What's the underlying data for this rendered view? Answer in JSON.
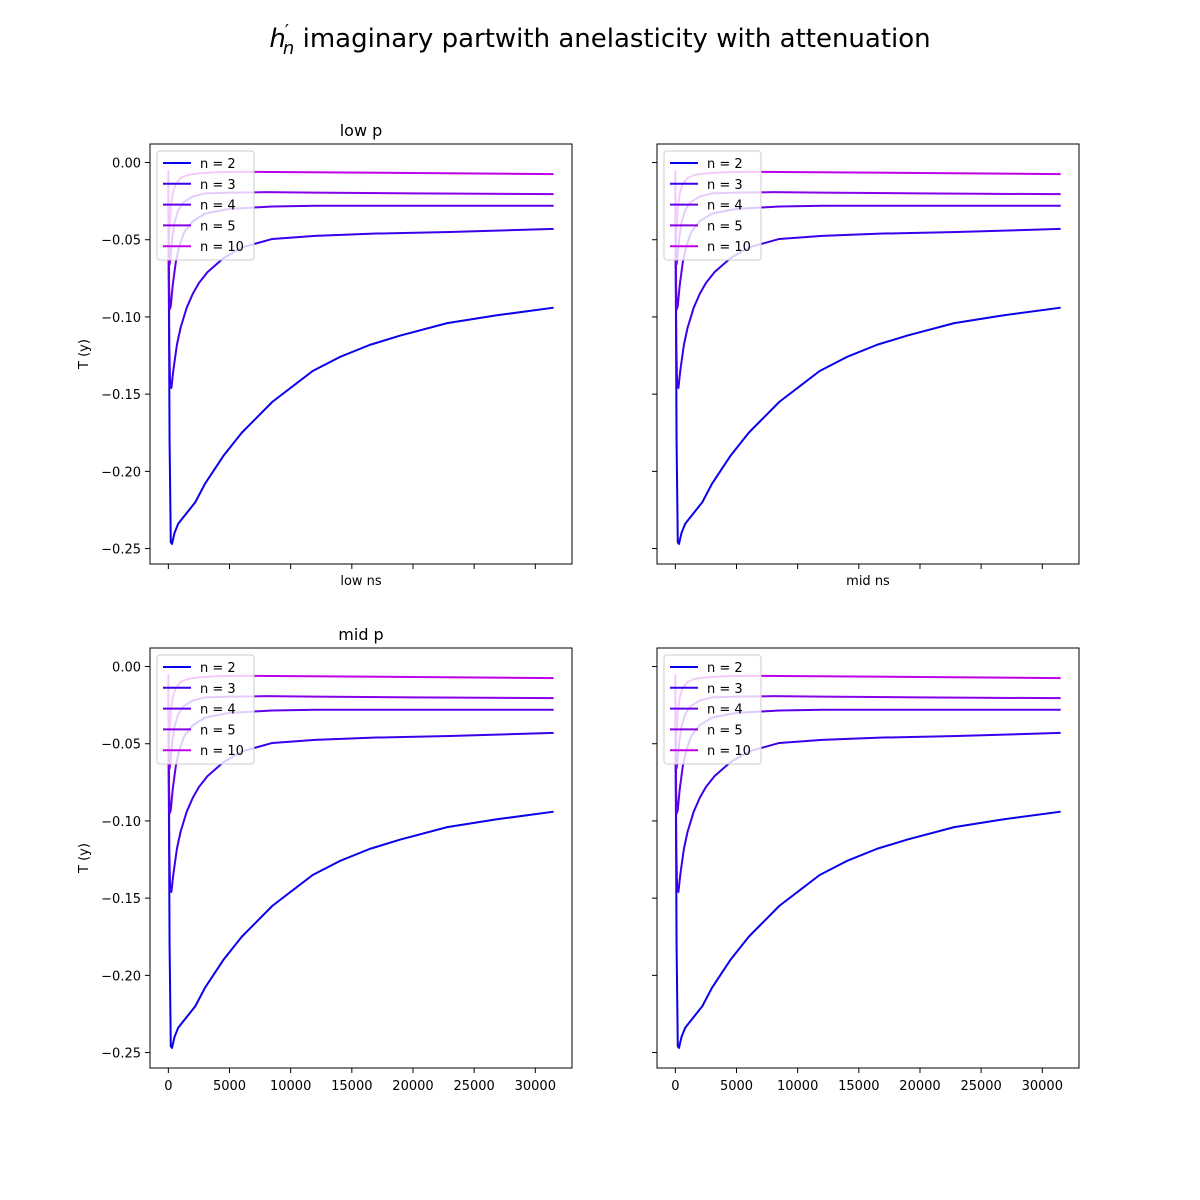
{
  "figure": {
    "title_math_base": "h",
    "title_math_prime": "′",
    "title_math_sub": "n",
    "title_text": " imaginary partwith anelasticity with attenuation"
  },
  "chart_data": [
    {
      "type": "line",
      "title": "low p",
      "xlabel": "low ns",
      "ylabel": "T (y)",
      "xlim": [
        -1500,
        33000
      ],
      "ylim": [
        -0.26,
        0.012
      ],
      "xticks": [
        0,
        5000,
        10000,
        15000,
        20000,
        25000,
        30000
      ],
      "xtick_labels_visible": false,
      "yticks": [
        0.0,
        -0.05,
        -0.1,
        -0.15,
        -0.2,
        -0.25
      ],
      "ytick_labels": [
        "0.00",
        "−0.05",
        "−0.10",
        "−0.15",
        "−0.20",
        "−0.25"
      ],
      "ytick_labels_visible": true,
      "legend": "upper-left",
      "series": [
        {
          "name": "n = 2",
          "color": "#0b00ec",
          "x": [
            0,
            100,
            200,
            300,
            500,
            800,
            1200,
            1600,
            2200,
            3000,
            4500,
            6000,
            8500,
            11800,
            14000,
            16500,
            19000,
            22800,
            26800,
            31500
          ],
          "y": [
            -0.02,
            -0.18,
            -0.246,
            -0.247,
            -0.24,
            -0.234,
            -0.23,
            -0.226,
            -0.22,
            -0.208,
            -0.19,
            -0.175,
            -0.155,
            -0.135,
            -0.126,
            -0.118,
            -0.112,
            -0.104,
            -0.099,
            -0.094
          ]
        },
        {
          "name": "n = 3",
          "color": "#3b00eb",
          "x": [
            0,
            80,
            150,
            250,
            400,
            700,
            1000,
            1500,
            2000,
            2500,
            3200,
            4500,
            6000,
            8500,
            12000,
            17000,
            23000,
            31500
          ],
          "y": [
            -0.02,
            -0.12,
            -0.145,
            -0.146,
            -0.135,
            -0.118,
            -0.107,
            -0.094,
            -0.085,
            -0.078,
            -0.071,
            -0.062,
            -0.055,
            -0.0495,
            -0.0475,
            -0.046,
            -0.045,
            -0.043
          ]
        },
        {
          "name": "n = 4",
          "color": "#6000ea",
          "x": [
            0,
            60,
            120,
            200,
            350,
            600,
            900,
            1300,
            2000,
            3000,
            5000,
            8500,
            12000,
            20000,
            31500
          ],
          "y": [
            -0.01,
            -0.08,
            -0.095,
            -0.093,
            -0.08,
            -0.065,
            -0.054,
            -0.045,
            -0.038,
            -0.033,
            -0.03,
            -0.0285,
            -0.028,
            -0.028,
            -0.028
          ]
        },
        {
          "name": "n = 5",
          "color": "#8700e8",
          "x": [
            0,
            50,
            100,
            170,
            300,
            500,
            800,
            1200,
            2000,
            3000,
            5000,
            8000,
            12000,
            20000,
            31500
          ],
          "y": [
            -0.01,
            -0.058,
            -0.066,
            -0.062,
            -0.05,
            -0.039,
            -0.031,
            -0.026,
            -0.022,
            -0.02,
            -0.0195,
            -0.0192,
            -0.0195,
            -0.02,
            -0.0205
          ]
        },
        {
          "name": "n = 10",
          "color": "#c000e6",
          "x": [
            0,
            30,
            70,
            120,
            200,
            350,
            600,
            1000,
            1600,
            2500,
            4000,
            6000,
            10000,
            20000,
            31500
          ],
          "y": [
            -0.005,
            -0.035,
            -0.045,
            -0.04,
            -0.03,
            -0.02,
            -0.014,
            -0.01,
            -0.008,
            -0.007,
            -0.0063,
            -0.006,
            -0.0062,
            -0.0068,
            -0.0075
          ]
        }
      ]
    },
    {
      "type": "line",
      "title": "",
      "xlabel": "mid ns",
      "ylabel": "",
      "xlim": [
        -1500,
        33000
      ],
      "ylim": [
        -0.26,
        0.012
      ],
      "xticks": [
        0,
        5000,
        10000,
        15000,
        20000,
        25000,
        30000
      ],
      "xtick_labels_visible": false,
      "yticks": [
        0.0,
        -0.05,
        -0.1,
        -0.15,
        -0.2,
        -0.25
      ],
      "ytick_labels_visible": false,
      "legend": "upper-left",
      "series": [
        {
          "name": "n = 2",
          "color": "#0b00ec",
          "x": [
            0,
            100,
            200,
            300,
            500,
            800,
            1200,
            1600,
            2200,
            3000,
            4500,
            6000,
            8500,
            11800,
            14000,
            16500,
            19000,
            22800,
            26800,
            31500
          ],
          "y": [
            -0.02,
            -0.18,
            -0.246,
            -0.247,
            -0.24,
            -0.234,
            -0.23,
            -0.226,
            -0.22,
            -0.208,
            -0.19,
            -0.175,
            -0.155,
            -0.135,
            -0.126,
            -0.118,
            -0.112,
            -0.104,
            -0.099,
            -0.094
          ]
        },
        {
          "name": "n = 3",
          "color": "#3b00eb",
          "x": [
            0,
            80,
            150,
            250,
            400,
            700,
            1000,
            1500,
            2000,
            2500,
            3200,
            4500,
            6000,
            8500,
            12000,
            17000,
            23000,
            31500
          ],
          "y": [
            -0.02,
            -0.12,
            -0.145,
            -0.146,
            -0.135,
            -0.118,
            -0.107,
            -0.094,
            -0.085,
            -0.078,
            -0.071,
            -0.062,
            -0.055,
            -0.0495,
            -0.0475,
            -0.046,
            -0.045,
            -0.043
          ]
        },
        {
          "name": "n = 4",
          "color": "#6000ea",
          "x": [
            0,
            60,
            120,
            200,
            350,
            600,
            900,
            1300,
            2000,
            3000,
            5000,
            8500,
            12000,
            20000,
            31500
          ],
          "y": [
            -0.01,
            -0.08,
            -0.095,
            -0.093,
            -0.08,
            -0.065,
            -0.054,
            -0.045,
            -0.038,
            -0.033,
            -0.03,
            -0.0285,
            -0.028,
            -0.028,
            -0.028
          ]
        },
        {
          "name": "n = 5",
          "color": "#8700e8",
          "x": [
            0,
            50,
            100,
            170,
            300,
            500,
            800,
            1200,
            2000,
            3000,
            5000,
            8000,
            12000,
            20000,
            31500
          ],
          "y": [
            -0.01,
            -0.058,
            -0.066,
            -0.062,
            -0.05,
            -0.039,
            -0.031,
            -0.026,
            -0.022,
            -0.02,
            -0.0195,
            -0.0192,
            -0.0195,
            -0.02,
            -0.0205
          ]
        },
        {
          "name": "n = 10",
          "color": "#c000e6",
          "x": [
            0,
            30,
            70,
            120,
            200,
            350,
            600,
            1000,
            1600,
            2500,
            4000,
            6000,
            10000,
            20000,
            31500
          ],
          "y": [
            -0.005,
            -0.035,
            -0.045,
            -0.04,
            -0.03,
            -0.02,
            -0.014,
            -0.01,
            -0.008,
            -0.007,
            -0.0063,
            -0.006,
            -0.0062,
            -0.0068,
            -0.0075
          ]
        }
      ]
    },
    {
      "type": "line",
      "title": "mid p",
      "xlabel": "",
      "ylabel": "T (y)",
      "xlim": [
        -1500,
        33000
      ],
      "ylim": [
        -0.26,
        0.012
      ],
      "xticks": [
        0,
        5000,
        10000,
        15000,
        20000,
        25000,
        30000
      ],
      "xtick_labels": [
        "0",
        "5000",
        "10000",
        "15000",
        "20000",
        "25000",
        "30000"
      ],
      "xtick_labels_visible": true,
      "yticks": [
        0.0,
        -0.05,
        -0.1,
        -0.15,
        -0.2,
        -0.25
      ],
      "ytick_labels": [
        "0.00",
        "−0.05",
        "−0.10",
        "−0.15",
        "−0.20",
        "−0.25"
      ],
      "ytick_labels_visible": true,
      "legend": "upper-left",
      "series": [
        {
          "name": "n = 2",
          "color": "#0b00ec",
          "x": [
            0,
            100,
            200,
            300,
            500,
            800,
            1200,
            1600,
            2200,
            3000,
            4500,
            6000,
            8500,
            11800,
            14000,
            16500,
            19000,
            22800,
            26800,
            31500
          ],
          "y": [
            -0.02,
            -0.18,
            -0.246,
            -0.247,
            -0.24,
            -0.234,
            -0.23,
            -0.226,
            -0.22,
            -0.208,
            -0.19,
            -0.175,
            -0.155,
            -0.135,
            -0.126,
            -0.118,
            -0.112,
            -0.104,
            -0.099,
            -0.094
          ]
        },
        {
          "name": "n = 3",
          "color": "#3b00eb",
          "x": [
            0,
            80,
            150,
            250,
            400,
            700,
            1000,
            1500,
            2000,
            2500,
            3200,
            4500,
            6000,
            8500,
            12000,
            17000,
            23000,
            31500
          ],
          "y": [
            -0.02,
            -0.12,
            -0.145,
            -0.146,
            -0.135,
            -0.118,
            -0.107,
            -0.094,
            -0.085,
            -0.078,
            -0.071,
            -0.062,
            -0.055,
            -0.0495,
            -0.0475,
            -0.046,
            -0.045,
            -0.043
          ]
        },
        {
          "name": "n = 4",
          "color": "#6000ea",
          "x": [
            0,
            60,
            120,
            200,
            350,
            600,
            900,
            1300,
            2000,
            3000,
            5000,
            8500,
            12000,
            20000,
            31500
          ],
          "y": [
            -0.01,
            -0.08,
            -0.095,
            -0.093,
            -0.08,
            -0.065,
            -0.054,
            -0.045,
            -0.038,
            -0.033,
            -0.03,
            -0.0285,
            -0.028,
            -0.028,
            -0.028
          ]
        },
        {
          "name": "n = 5",
          "color": "#8700e8",
          "x": [
            0,
            50,
            100,
            170,
            300,
            500,
            800,
            1200,
            2000,
            3000,
            5000,
            8000,
            12000,
            20000,
            31500
          ],
          "y": [
            -0.01,
            -0.058,
            -0.066,
            -0.062,
            -0.05,
            -0.039,
            -0.031,
            -0.026,
            -0.022,
            -0.02,
            -0.0195,
            -0.0192,
            -0.0195,
            -0.02,
            -0.0205
          ]
        },
        {
          "name": "n = 10",
          "color": "#c000e6",
          "x": [
            0,
            30,
            70,
            120,
            200,
            350,
            600,
            1000,
            1600,
            2500,
            4000,
            6000,
            10000,
            20000,
            31500
          ],
          "y": [
            -0.005,
            -0.035,
            -0.045,
            -0.04,
            -0.03,
            -0.02,
            -0.014,
            -0.01,
            -0.008,
            -0.007,
            -0.0063,
            -0.006,
            -0.0062,
            -0.0068,
            -0.0075
          ]
        }
      ]
    },
    {
      "type": "line",
      "title": "",
      "xlabel": "",
      "ylabel": "",
      "xlim": [
        -1500,
        33000
      ],
      "ylim": [
        -0.26,
        0.012
      ],
      "xticks": [
        0,
        5000,
        10000,
        15000,
        20000,
        25000,
        30000
      ],
      "xtick_labels": [
        "0",
        "5000",
        "10000",
        "15000",
        "20000",
        "25000",
        "30000"
      ],
      "xtick_labels_visible": true,
      "yticks": [
        0.0,
        -0.05,
        -0.1,
        -0.15,
        -0.2,
        -0.25
      ],
      "ytick_labels_visible": false,
      "legend": "upper-left",
      "series": [
        {
          "name": "n = 2",
          "color": "#0b00ec",
          "x": [
            0,
            100,
            200,
            300,
            500,
            800,
            1200,
            1600,
            2200,
            3000,
            4500,
            6000,
            8500,
            11800,
            14000,
            16500,
            19000,
            22800,
            26800,
            31500
          ],
          "y": [
            -0.02,
            -0.18,
            -0.246,
            -0.247,
            -0.24,
            -0.234,
            -0.23,
            -0.226,
            -0.22,
            -0.208,
            -0.19,
            -0.175,
            -0.155,
            -0.135,
            -0.126,
            -0.118,
            -0.112,
            -0.104,
            -0.099,
            -0.094
          ]
        },
        {
          "name": "n = 3",
          "color": "#3b00eb",
          "x": [
            0,
            80,
            150,
            250,
            400,
            700,
            1000,
            1500,
            2000,
            2500,
            3200,
            4500,
            6000,
            8500,
            12000,
            17000,
            23000,
            31500
          ],
          "y": [
            -0.02,
            -0.12,
            -0.145,
            -0.146,
            -0.135,
            -0.118,
            -0.107,
            -0.094,
            -0.085,
            -0.078,
            -0.071,
            -0.062,
            -0.055,
            -0.0495,
            -0.0475,
            -0.046,
            -0.045,
            -0.043
          ]
        },
        {
          "name": "n = 4",
          "color": "#6000ea",
          "x": [
            0,
            60,
            120,
            200,
            350,
            600,
            900,
            1300,
            2000,
            3000,
            5000,
            8500,
            12000,
            20000,
            31500
          ],
          "y": [
            -0.01,
            -0.08,
            -0.095,
            -0.093,
            -0.08,
            -0.065,
            -0.054,
            -0.045,
            -0.038,
            -0.033,
            -0.03,
            -0.0285,
            -0.028,
            -0.028,
            -0.028
          ]
        },
        {
          "name": "n = 5",
          "color": "#8700e8",
          "x": [
            0,
            50,
            100,
            170,
            300,
            500,
            800,
            1200,
            2000,
            3000,
            5000,
            8000,
            12000,
            20000,
            31500
          ],
          "y": [
            -0.01,
            -0.058,
            -0.066,
            -0.062,
            -0.05,
            -0.039,
            -0.031,
            -0.026,
            -0.022,
            -0.02,
            -0.0195,
            -0.0192,
            -0.0195,
            -0.02,
            -0.0205
          ]
        },
        {
          "name": "n = 10",
          "color": "#c000e6",
          "x": [
            0,
            30,
            70,
            120,
            200,
            350,
            600,
            1000,
            1600,
            2500,
            4000,
            6000,
            10000,
            20000,
            31500
          ],
          "y": [
            -0.005,
            -0.035,
            -0.045,
            -0.04,
            -0.03,
            -0.02,
            -0.014,
            -0.01,
            -0.008,
            -0.007,
            -0.0063,
            -0.006,
            -0.0062,
            -0.0068,
            -0.0075
          ]
        }
      ]
    }
  ]
}
